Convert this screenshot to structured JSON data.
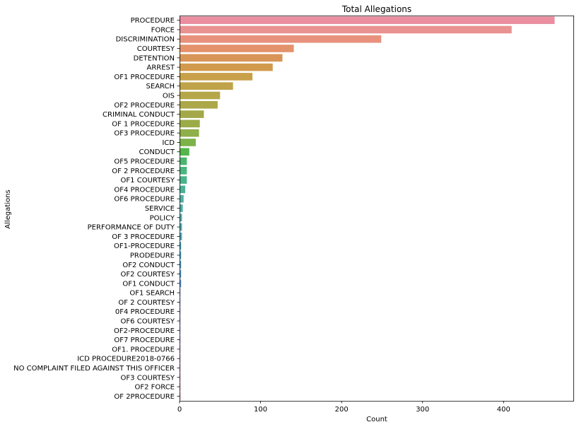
{
  "chart_data": {
    "type": "bar",
    "orientation": "horizontal",
    "title": "Total Allegations",
    "xlabel": "Count",
    "ylabel": "Allegations",
    "xlim": [
      0,
      487
    ],
    "xticks": [
      0,
      100,
      200,
      300,
      400
    ],
    "grid": false,
    "legend": "none",
    "categories": [
      "PROCEDURE",
      "FORCE",
      "DISCRIMINATION",
      "COURTESY",
      "DETENTION",
      "ARREST",
      "OF1 PROCEDURE",
      "SEARCH",
      "OIS",
      "OF2 PROCEDURE",
      "CRIMINAL CONDUCT",
      "OF 1 PROCEDURE",
      "OF3 PROCEDURE",
      "ICD",
      "CONDUCT",
      "OF5 PROCEDURE",
      "OF 2 PROCEDURE",
      "OF1 COURTESY",
      "OF4 PROCEDURE",
      "OF6 PROCEDURE",
      "SERVICE",
      "POLICY",
      "PERFORMANCE OF DUTY",
      "OF 3 PROCEDURE",
      "OF1-PROCEDURE",
      "PRODEDURE",
      "OF2 CONDUCT",
      "OF2 COURTESY",
      "OF1 CONDUCT",
      "OF1 SEARCH",
      "OF 2 COURTESY",
      "0F4 PROCEDURE",
      "OF6 COURTESY",
      "OF2-PROCEDURE",
      "OF7 PROCEDURE",
      "OF1. PROCEDURE",
      "ICD PROCEDURE2018-0766",
      "NO COMPLAINT FILED AGAINST THIS OFFICER",
      "OF3 COURTESY",
      "OF2 FORCE",
      "OF 2PROCEDURE"
    ],
    "values": [
      463,
      410,
      249,
      141,
      127,
      115,
      90,
      66,
      50,
      47,
      30,
      25,
      24,
      20,
      12,
      9,
      9,
      9,
      7,
      5,
      4,
      3,
      3,
      3,
      2,
      2,
      2,
      2,
      2,
      1,
      1,
      1,
      1,
      1,
      1,
      1,
      1,
      1,
      1,
      1,
      1
    ],
    "colors": [
      "#ea8ea0",
      "#e99291",
      "#e8927e",
      "#e4926c",
      "#d99558",
      "#d29a4c",
      "#c9a04a",
      "#bfa349",
      "#b5a749",
      "#aca748",
      "#a3a948",
      "#9aab48",
      "#8eaf49",
      "#7cb249",
      "#54b64a",
      "#4bb46e",
      "#4bb47f",
      "#4bb38c",
      "#4cb196",
      "#4db0a2",
      "#4daea9",
      "#4eadb0",
      "#4facb7",
      "#50aabd",
      "#50a9c3",
      "#51a8c9",
      "#52a6cf",
      "#56a4d4",
      "#5fa0da",
      "#6c9cdf",
      "#7b97e4",
      "#8a92e8",
      "#9b8de9",
      "#aa88e8",
      "#b984e6",
      "#c57fe3",
      "#d07be0",
      "#db78d8",
      "#e07ac9",
      "#e57dbb",
      "#e981ad"
    ]
  }
}
